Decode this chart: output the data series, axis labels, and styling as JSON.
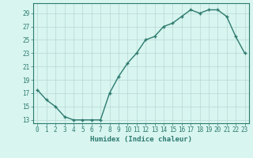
{
  "x": [
    0,
    1,
    2,
    3,
    4,
    5,
    6,
    7,
    8,
    9,
    10,
    11,
    12,
    13,
    14,
    15,
    16,
    17,
    18,
    19,
    20,
    21,
    22,
    23
  ],
  "y": [
    17.5,
    16,
    15,
    13.5,
    13,
    13,
    13,
    13,
    17,
    19.5,
    21.5,
    23,
    25,
    25.5,
    27,
    27.5,
    28.5,
    29.5,
    29,
    29.5,
    29.5,
    28.5,
    25.5,
    23
  ],
  "line_color": "#2d7a6e",
  "marker": "+",
  "bg_color": "#d8f5f0",
  "grid_color": "#b8d8d4",
  "axis_color": "#2d7a6e",
  "xlabel": "Humidex (Indice chaleur)",
  "ylim": [
    12.5,
    30.5
  ],
  "xlim": [
    -0.5,
    23.5
  ],
  "yticks": [
    13,
    15,
    17,
    19,
    21,
    23,
    25,
    27,
    29
  ],
  "xticks": [
    0,
    1,
    2,
    3,
    4,
    5,
    6,
    7,
    8,
    9,
    10,
    11,
    12,
    13,
    14,
    15,
    16,
    17,
    18,
    19,
    20,
    21,
    22,
    23
  ],
  "label_fontsize": 6.5,
  "tick_fontsize": 5.5,
  "linewidth": 1.0,
  "markersize": 3.5,
  "markeredgewidth": 1.0
}
